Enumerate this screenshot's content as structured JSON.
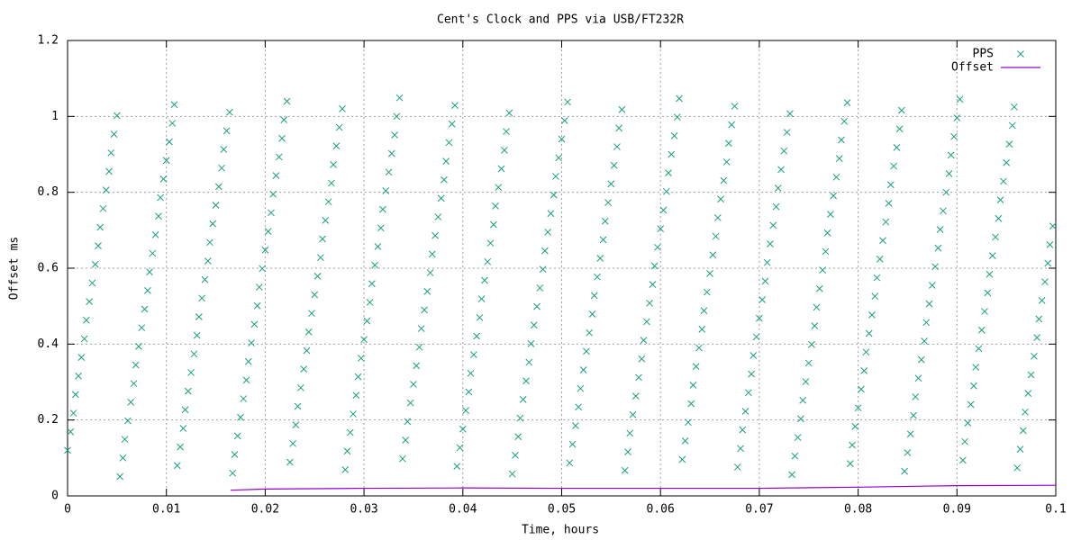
{
  "chart_data": {
    "type": "scatter",
    "title": "Cent's Clock and PPS via USB/FT232R",
    "x_label": "Time, hours",
    "y_label": "Offset ms",
    "xlim": [
      0,
      0.1
    ],
    "xticks": [
      0,
      0.01,
      0.02,
      0.03,
      0.04,
      0.05,
      0.06,
      0.07,
      0.08,
      0.09,
      0.1
    ],
    "ylim": [
      0,
      1.2
    ],
    "yticks": [
      0,
      0.2,
      0.4,
      0.6,
      0.8,
      1,
      1.2
    ],
    "grid": true,
    "legend": "top-right",
    "series": [
      {
        "name": "PPS",
        "color": "#1a9e80",
        "style": "points",
        "x": [
          0,
          0.0003,
          0.0006,
          0.0008,
          0.0011,
          0.0014,
          0.0017,
          0.0019,
          0.0022,
          0.0025,
          0.0028,
          0.0031,
          0.0033,
          0.0036,
          0.0039,
          0.0042,
          0.0044,
          0.0047,
          0.005,
          0.0053,
          0.0056,
          0.0058,
          0.0061,
          0.0064,
          0.0067,
          0.0069,
          0.0072,
          0.0075,
          0.0078,
          0.0081,
          0.0083,
          0.0086,
          0.0089,
          0.0092,
          0.0094,
          0.0097,
          0.01,
          0.0103,
          0.0106,
          0.0108,
          0.0111,
          0.0114,
          0.0117,
          0.0119,
          0.0122,
          0.0125,
          0.0128,
          0.0131,
          0.0133,
          0.0136,
          0.0139,
          0.0142,
          0.0144,
          0.0147,
          0.015,
          0.0153,
          0.0156,
          0.0158,
          0.0161,
          0.0164,
          0.0167,
          0.0169,
          0.0172,
          0.0175,
          0.0178,
          0.0181,
          0.0183,
          0.0186,
          0.0189,
          0.0192,
          0.0194,
          0.0197,
          0.02,
          0.0203,
          0.0206,
          0.0208,
          0.0211,
          0.0214,
          0.0217,
          0.0219,
          0.0222,
          0.0225,
          0.0228,
          0.0231,
          0.0233,
          0.0236,
          0.0239,
          0.0242,
          0.0244,
          0.0247,
          0.025,
          0.0253,
          0.0256,
          0.0258,
          0.0261,
          0.0264,
          0.0267,
          0.0269,
          0.0272,
          0.0275,
          0.0278,
          0.0281,
          0.0283,
          0.0286,
          0.0289,
          0.0292,
          0.0294,
          0.0297,
          0.03,
          0.0303,
          0.0306,
          0.0308,
          0.0311,
          0.0314,
          0.0317,
          0.0319,
          0.0322,
          0.0325,
          0.0328,
          0.0331,
          0.0333,
          0.0336,
          0.0339,
          0.0342,
          0.0344,
          0.0347,
          0.035,
          0.0353,
          0.0356,
          0.0358,
          0.0361,
          0.0364,
          0.0367,
          0.0369,
          0.0372,
          0.0375,
          0.0378,
          0.0381,
          0.0383,
          0.0386,
          0.0389,
          0.0392,
          0.0394,
          0.0397,
          0.04,
          0.0403,
          0.0406,
          0.0408,
          0.0411,
          0.0414,
          0.0417,
          0.0419,
          0.0422,
          0.0425,
          0.0428,
          0.0431,
          0.0433,
          0.0436,
          0.0439,
          0.0442,
          0.0444,
          0.0447,
          0.045,
          0.0453,
          0.0456,
          0.0458,
          0.0461,
          0.0464,
          0.0467,
          0.0469,
          0.0472,
          0.0475,
          0.0478,
          0.0481,
          0.0483,
          0.0486,
          0.0489,
          0.0492,
          0.0494,
          0.0497,
          0.05,
          0.0503,
          0.0506,
          0.0508,
          0.0511,
          0.0514,
          0.0517,
          0.0519,
          0.0522,
          0.0525,
          0.0528,
          0.0531,
          0.0533,
          0.0536,
          0.0539,
          0.0542,
          0.0544,
          0.0547,
          0.055,
          0.0553,
          0.0556,
          0.0558,
          0.0561,
          0.0564,
          0.0567,
          0.0569,
          0.0572,
          0.0575,
          0.0578,
          0.0581,
          0.0583,
          0.0586,
          0.0589,
          0.0592,
          0.0594,
          0.0597,
          0.06,
          0.0603,
          0.0606,
          0.0608,
          0.0611,
          0.0614,
          0.0617,
          0.0619,
          0.0622,
          0.0625,
          0.0628,
          0.0631,
          0.0633,
          0.0636,
          0.0639,
          0.0642,
          0.0644,
          0.0647,
          0.065,
          0.0653,
          0.0656,
          0.0658,
          0.0661,
          0.0664,
          0.0667,
          0.0669,
          0.0672,
          0.0675,
          0.0678,
          0.0681,
          0.0683,
          0.0686,
          0.0689,
          0.0692,
          0.0694,
          0.0697,
          0.07,
          0.0703,
          0.0706,
          0.0708,
          0.0711,
          0.0714,
          0.0717,
          0.0719,
          0.0722,
          0.0725,
          0.0728,
          0.0731,
          0.0733,
          0.0736,
          0.0739,
          0.0742,
          0.0744,
          0.0747,
          0.075,
          0.0753,
          0.0756,
          0.0758,
          0.0761,
          0.0764,
          0.0767,
          0.0769,
          0.0772,
          0.0775,
          0.0778,
          0.0781,
          0.0783,
          0.0786,
          0.0789,
          0.0792,
          0.0794,
          0.0797,
          0.08,
          0.0803,
          0.0806,
          0.0808,
          0.0811,
          0.0814,
          0.0817,
          0.0819,
          0.0822,
          0.0825,
          0.0828,
          0.0831,
          0.0833,
          0.0836,
          0.0839,
          0.0842,
          0.0844,
          0.0847,
          0.085,
          0.0853,
          0.0856,
          0.0858,
          0.0861,
          0.0864,
          0.0867,
          0.0869,
          0.0872,
          0.0875,
          0.0878,
          0.0881,
          0.0883,
          0.0886,
          0.0889,
          0.0892,
          0.0894,
          0.0897,
          0.09,
          0.0903,
          0.0906,
          0.0908,
          0.0911,
          0.0914,
          0.0917,
          0.0919,
          0.0922,
          0.0925,
          0.0928,
          0.0931,
          0.0933,
          0.0936,
          0.0939,
          0.0942,
          0.0944,
          0.0947,
          0.095,
          0.0953,
          0.0956,
          0.0958,
          0.0961,
          0.0964,
          0.0967,
          0.0969,
          0.0972,
          0.0975,
          0.0978,
          0.0981,
          0.0983,
          0.0986,
          0.0989,
          0.0992,
          0.0994,
          0.0997
        ],
        "values": [
          0.12,
          0.169,
          0.218,
          0.267,
          0.316,
          0.365,
          0.414,
          0.463,
          0.512,
          0.561,
          0.61,
          0.659,
          0.708,
          0.757,
          0.806,
          0.855,
          0.904,
          0.953,
          1.002,
          0.051,
          0.1,
          0.149,
          0.198,
          0.247,
          0.296,
          0.345,
          0.394,
          0.443,
          0.492,
          0.541,
          0.59,
          0.639,
          0.688,
          0.737,
          0.786,
          0.835,
          0.884,
          0.933,
          0.982,
          1.031,
          0.08,
          0.129,
          0.178,
          0.227,
          0.276,
          0.325,
          0.374,
          0.423,
          0.472,
          0.521,
          0.57,
          0.619,
          0.668,
          0.717,
          0.766,
          0.815,
          0.864,
          0.913,
          0.962,
          1.011,
          0.06,
          0.109,
          0.158,
          0.207,
          0.256,
          0.305,
          0.354,
          0.403,
          0.452,
          0.501,
          0.55,
          0.599,
          0.648,
          0.697,
          0.746,
          0.795,
          0.844,
          0.893,
          0.942,
          0.991,
          1.04,
          0.089,
          0.138,
          0.187,
          0.236,
          0.285,
          0.334,
          0.383,
          0.432,
          0.481,
          0.53,
          0.579,
          0.628,
          0.677,
          0.726,
          0.775,
          0.824,
          0.873,
          0.922,
          0.971,
          1.02,
          0.069,
          0.118,
          0.167,
          0.216,
          0.265,
          0.314,
          0.363,
          0.412,
          0.461,
          0.51,
          0.559,
          0.608,
          0.657,
          0.706,
          0.755,
          0.804,
          0.853,
          0.902,
          0.951,
          1,
          1.049,
          0.098,
          0.147,
          0.196,
          0.245,
          0.294,
          0.343,
          0.392,
          0.441,
          0.49,
          0.539,
          0.588,
          0.637,
          0.686,
          0.735,
          0.784,
          0.833,
          0.882,
          0.931,
          0.98,
          1.029,
          0.078,
          0.127,
          0.176,
          0.225,
          0.274,
          0.323,
          0.372,
          0.421,
          0.47,
          0.519,
          0.568,
          0.617,
          0.666,
          0.715,
          0.764,
          0.813,
          0.862,
          0.911,
          0.96,
          1.009,
          0.058,
          0.107,
          0.156,
          0.205,
          0.254,
          0.303,
          0.352,
          0.401,
          0.45,
          0.499,
          0.548,
          0.597,
          0.646,
          0.695,
          0.744,
          0.793,
          0.842,
          0.891,
          0.94,
          0.989,
          1.038,
          0.087,
          0.136,
          0.185,
          0.234,
          0.283,
          0.332,
          0.381,
          0.43,
          0.479,
          0.528,
          0.577,
          0.626,
          0.675,
          0.724,
          0.773,
          0.822,
          0.871,
          0.92,
          0.969,
          1.018,
          0.067,
          0.116,
          0.165,
          0.214,
          0.263,
          0.312,
          0.361,
          0.41,
          0.459,
          0.508,
          0.557,
          0.606,
          0.655,
          0.704,
          0.753,
          0.802,
          0.851,
          0.9,
          0.949,
          0.998,
          1.047,
          0.096,
          0.145,
          0.194,
          0.243,
          0.292,
          0.341,
          0.39,
          0.439,
          0.488,
          0.537,
          0.586,
          0.635,
          0.684,
          0.733,
          0.782,
          0.831,
          0.88,
          0.929,
          0.978,
          1.027,
          0.076,
          0.125,
          0.174,
          0.223,
          0.272,
          0.321,
          0.37,
          0.419,
          0.468,
          0.517,
          0.566,
          0.615,
          0.664,
          0.713,
          0.762,
          0.811,
          0.86,
          0.909,
          0.958,
          1.007,
          0.056,
          0.105,
          0.154,
          0.203,
          0.252,
          0.301,
          0.35,
          0.399,
          0.448,
          0.497,
          0.546,
          0.595,
          0.644,
          0.693,
          0.742,
          0.791,
          0.84,
          0.889,
          0.938,
          0.987,
          1.036,
          0.085,
          0.134,
          0.183,
          0.232,
          0.281,
          0.33,
          0.379,
          0.428,
          0.477,
          0.526,
          0.575,
          0.624,
          0.673,
          0.722,
          0.771,
          0.82,
          0.869,
          0.918,
          0.967,
          1.016,
          0.065,
          0.114,
          0.163,
          0.212,
          0.261,
          0.31,
          0.359,
          0.408,
          0.457,
          0.506,
          0.555,
          0.604,
          0.653,
          0.702,
          0.751,
          0.8,
          0.849,
          0.898,
          0.947,
          0.996,
          1.045,
          0.094,
          0.143,
          0.192,
          0.241,
          0.29,
          0.339,
          0.388,
          0.437,
          0.486,
          0.535,
          0.584,
          0.633,
          0.682,
          0.731,
          0.78,
          0.829,
          0.878,
          0.927,
          0.976,
          1.025,
          0.074,
          0.123,
          0.172,
          0.221,
          0.27,
          0.319,
          0.368,
          0.417,
          0.466,
          0.515,
          0.564,
          0.613,
          0.662,
          0.711
        ]
      },
      {
        "name": "Offset",
        "color": "#9400d3",
        "style": "lines",
        "x": [
          0.0165,
          0.02,
          0.03,
          0.04,
          0.05,
          0.06,
          0.07,
          0.08,
          0.09,
          0.1
        ],
        "values": [
          0.015,
          0.018,
          0.02,
          0.021,
          0.02,
          0.02,
          0.02,
          0.023,
          0.027,
          0.028
        ]
      }
    ]
  }
}
